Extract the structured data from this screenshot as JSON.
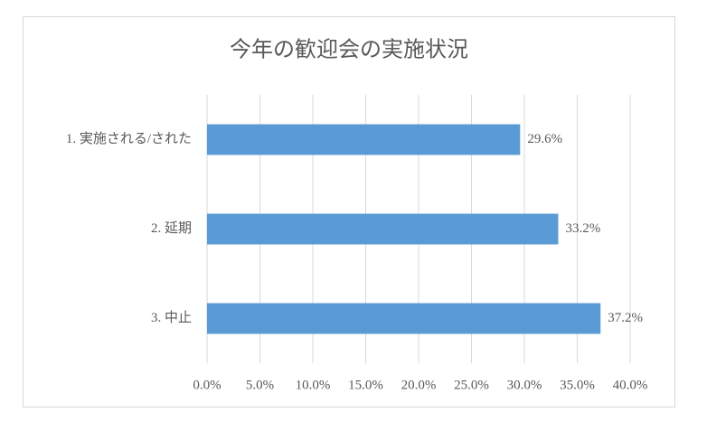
{
  "chart_data": {
    "type": "bar",
    "orientation": "horizontal",
    "title": "今年の歓迎会の実施状況",
    "categories": [
      "1. 実施される/された",
      "2. 延期",
      "3. 中止"
    ],
    "values": [
      29.6,
      33.2,
      37.2
    ],
    "value_labels": [
      "29.6%",
      "33.2%",
      "37.2%"
    ],
    "color": "#5b9bd5",
    "xlim": [
      0,
      40
    ],
    "xticks": [
      {
        "value": 0,
        "label": "0.0%"
      },
      {
        "value": 5,
        "label": "5.0%"
      },
      {
        "value": 10,
        "label": "10.0%"
      },
      {
        "value": 15,
        "label": "15.0%"
      },
      {
        "value": 20,
        "label": "20.0%"
      },
      {
        "value": 25,
        "label": "25.0%"
      },
      {
        "value": 30,
        "label": "30.0%"
      },
      {
        "value": 35,
        "label": "35.0%"
      },
      {
        "value": 40,
        "label": "40.0%"
      }
    ],
    "grid": true
  }
}
